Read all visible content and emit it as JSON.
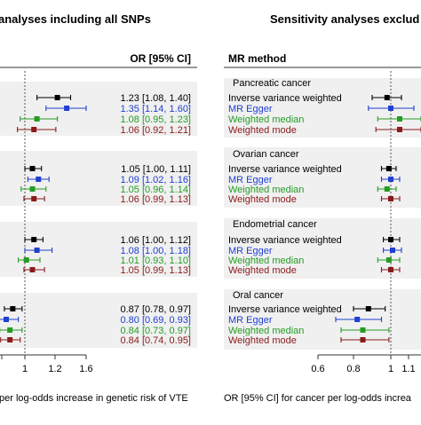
{
  "chart_data": [
    {
      "type": "forest",
      "title": "analyses including all SNPs",
      "column_header": "OR [95% CI]",
      "xlabel": "per log-odds increase in genetic risk of VTE",
      "xlim": [
        0.6,
        1.7
      ],
      "x_ticks": [
        1,
        1.2,
        1.6
      ],
      "x_tick_labels": [
        "1",
        "1.2",
        "1.6"
      ],
      "reference_line": 1,
      "groups": [
        {
          "rows": [
            {
              "method": "Inverse variance weighted",
              "or": 1.23,
              "lo": 1.08,
              "hi": 1.4,
              "label": "1.23 [1.08, 1.40]"
            },
            {
              "method": "MR Egger",
              "or": 1.35,
              "lo": 1.14,
              "hi": 1.6,
              "label": "1.35 [1.14, 1.60]"
            },
            {
              "method": "Weighted median",
              "or": 1.08,
              "lo": 0.95,
              "hi": 1.23,
              "label": "1.08 [0.95, 1.23]"
            },
            {
              "method": "Weighted mode",
              "or": 1.06,
              "lo": 0.92,
              "hi": 1.21,
              "label": "1.06 [0.92, 1.21]"
            }
          ]
        },
        {
          "rows": [
            {
              "method": "Inverse variance weighted",
              "or": 1.05,
              "lo": 1.0,
              "hi": 1.11,
              "label": "1.05 [1.00, 1.11]"
            },
            {
              "method": "MR Egger",
              "or": 1.09,
              "lo": 1.02,
              "hi": 1.16,
              "label": "1.09 [1.02, 1.16]"
            },
            {
              "method": "Weighted median",
              "or": 1.05,
              "lo": 0.96,
              "hi": 1.14,
              "label": "1.05 [0.96, 1.14]"
            },
            {
              "method": "Weighted mode",
              "or": 1.06,
              "lo": 0.99,
              "hi": 1.13,
              "label": "1.06 [0.99, 1.13]"
            }
          ]
        },
        {
          "rows": [
            {
              "method": "Inverse variance weighted",
              "or": 1.06,
              "lo": 1.0,
              "hi": 1.12,
              "label": "1.06 [1.00, 1.12]"
            },
            {
              "method": "MR Egger",
              "or": 1.08,
              "lo": 1.0,
              "hi": 1.18,
              "label": "1.08 [1.00, 1.18]"
            },
            {
              "method": "Weighted median",
              "or": 1.01,
              "lo": 0.93,
              "hi": 1.1,
              "label": "1.01 [0.93, 1.10]"
            },
            {
              "method": "Weighted mode",
              "or": 1.05,
              "lo": 0.99,
              "hi": 1.13,
              "label": "1.05 [0.99, 1.13]"
            }
          ]
        },
        {
          "rows": [
            {
              "method": "Inverse variance weighted",
              "or": 0.87,
              "lo": 0.78,
              "hi": 0.97,
              "label": "0.87 [0.78, 0.97]"
            },
            {
              "method": "MR Egger",
              "or": 0.8,
              "lo": 0.69,
              "hi": 0.93,
              "label": "0.80 [0.69, 0.93]"
            },
            {
              "method": "Weighted median",
              "or": 0.84,
              "lo": 0.73,
              "hi": 0.97,
              "label": "0.84 [0.73, 0.97]"
            },
            {
              "method": "Weighted mode",
              "or": 0.84,
              "lo": 0.74,
              "hi": 0.95,
              "label": "0.84 [0.74, 0.95]"
            }
          ]
        }
      ]
    },
    {
      "type": "forest",
      "title": "Sensitivity analyses exclud",
      "column_header": "MR method",
      "xlabel": "OR [95% CI] for cancer per log-odds increa",
      "xlim": [
        0.6,
        1.2
      ],
      "x_ticks": [
        0.6,
        0.8,
        1,
        1.1
      ],
      "x_tick_labels": [
        "0.6",
        "0.8",
        "1",
        "1.1"
      ],
      "reference_line": 1,
      "groups": [
        {
          "name": "Pancreatic cancer",
          "rows": [
            {
              "method": "Inverse variance weighted",
              "or": 0.98,
              "lo": 0.9,
              "hi": 1.06
            },
            {
              "method": "MR Egger",
              "or": 1.0,
              "lo": 0.88,
              "hi": 1.13
            },
            {
              "method": "Weighted median",
              "or": 1.05,
              "lo": 0.93,
              "hi": 1.17
            },
            {
              "method": "Weighted mode",
              "or": 1.05,
              "lo": 0.92,
              "hi": 1.17
            }
          ]
        },
        {
          "name": "Ovarian cancer",
          "rows": [
            {
              "method": "Inverse variance weighted",
              "or": 0.99,
              "lo": 0.95,
              "hi": 1.03
            },
            {
              "method": "MR Egger",
              "or": 1.0,
              "lo": 0.95,
              "hi": 1.05
            },
            {
              "method": "Weighted median",
              "or": 0.98,
              "lo": 0.93,
              "hi": 1.03
            },
            {
              "method": "Weighted mode",
              "or": 1.0,
              "lo": 0.95,
              "hi": 1.05
            }
          ]
        },
        {
          "name": "Endometrial cancer",
          "rows": [
            {
              "method": "Inverse variance weighted",
              "or": 1.0,
              "lo": 0.96,
              "hi": 1.05
            },
            {
              "method": "MR Egger",
              "or": 1.01,
              "lo": 0.96,
              "hi": 1.06
            },
            {
              "method": "Weighted median",
              "or": 0.99,
              "lo": 0.93,
              "hi": 1.05
            },
            {
              "method": "Weighted mode",
              "or": 1.0,
              "lo": 0.95,
              "hi": 1.05
            }
          ]
        },
        {
          "name": "Oral cancer",
          "rows": [
            {
              "method": "Inverse variance weighted",
              "or": 0.88,
              "lo": 0.8,
              "hi": 0.97
            },
            {
              "method": "MR Egger",
              "or": 0.82,
              "lo": 0.7,
              "hi": 0.95
            },
            {
              "method": "Weighted median",
              "or": 0.85,
              "lo": 0.73,
              "hi": 0.99
            },
            {
              "method": "Weighted mode",
              "or": 0.85,
              "lo": 0.73,
              "hi": 0.99
            }
          ]
        }
      ]
    }
  ],
  "colors": {
    "Inverse variance weighted": "#000000",
    "MR Egger": "#2040d0",
    "Weighted median": "#249c24",
    "Weighted mode": "#8b1a1a",
    "panel_band": "#f0f0f0",
    "axis": "#333333",
    "ref_line": "#555555"
  }
}
